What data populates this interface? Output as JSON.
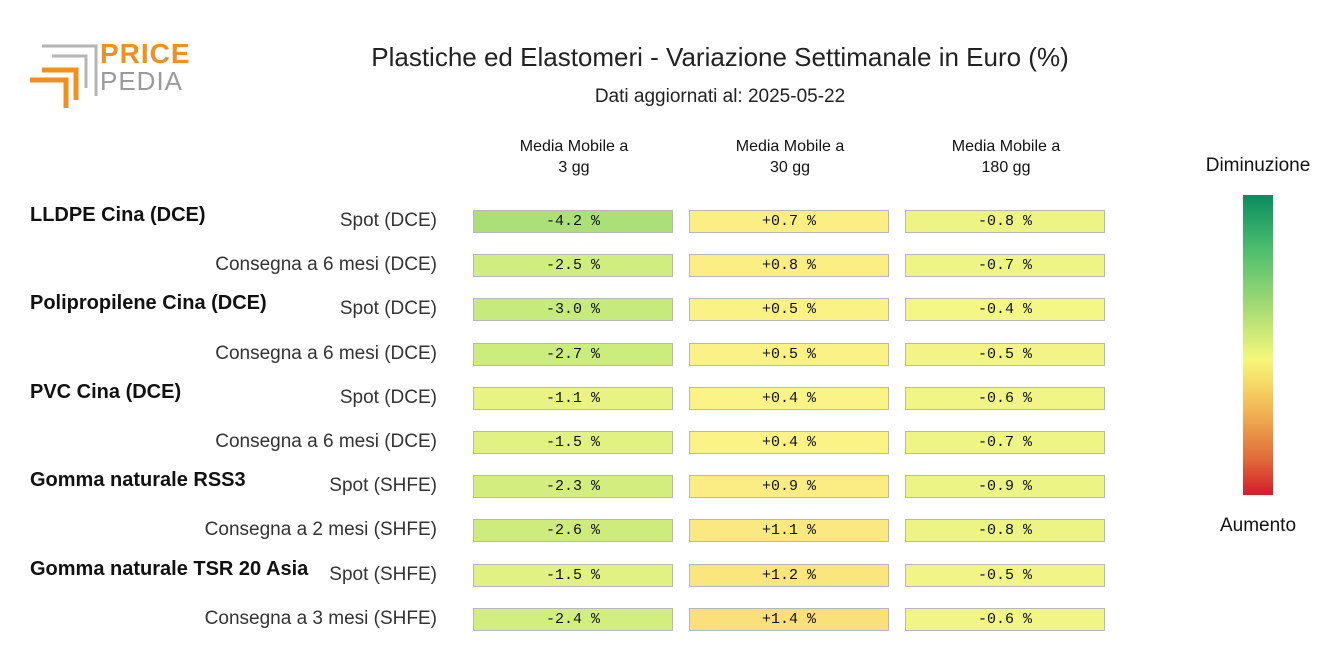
{
  "logo": {
    "line1": "PRICE",
    "line2": "PEDIA"
  },
  "title": "Plastiche ed Elastomeri - Variazione Settimanale in Euro (%)",
  "subtitle": "Dati aggiornati al: 2025-05-22",
  "columns": [
    {
      "line1": "Media Mobile a",
      "line2": "3 gg"
    },
    {
      "line1": "Media Mobile a",
      "line2": "30 gg"
    },
    {
      "line1": "Media Mobile a",
      "line2": "180 gg"
    }
  ],
  "legend": {
    "top": "Diminuzione",
    "bottom": "Aumento"
  },
  "groups": [
    {
      "name": "LLDPE Cina (DCE)",
      "rows": [
        "Spot (DCE)",
        "Consegna a 6 mesi (DCE)"
      ]
    },
    {
      "name": "Polipropilene Cina (DCE)",
      "rows": [
        "Spot (DCE)",
        "Consegna a 6 mesi (DCE)"
      ]
    },
    {
      "name": "PVC Cina (DCE)",
      "rows": [
        "Spot (DCE)",
        "Consegna a 6 mesi (DCE)"
      ]
    },
    {
      "name": "Gomma naturale RSS3",
      "rows": [
        "Spot (SHFE)",
        "Consegna a 2 mesi (SHFE)"
      ]
    },
    {
      "name": "Gomma naturale TSR 20 Asia",
      "rows": [
        "Spot (SHFE)",
        "Consegna a 3 mesi (SHFE)"
      ]
    }
  ],
  "chart_data": {
    "type": "heatmap",
    "title": "Plastiche ed Elastomeri - Variazione Settimanale in Euro (%)",
    "columns": [
      "Media Mobile a 3 gg",
      "Media Mobile a 30 gg",
      "Media Mobile a 180 gg"
    ],
    "rows": [
      {
        "product": "LLDPE Cina (DCE)",
        "contract": "Spot (DCE)",
        "values": [
          -4.2,
          0.7,
          -0.8
        ],
        "labels": [
          "-4.2 %",
          "+0.7 %",
          "-0.8 %"
        ]
      },
      {
        "product": "LLDPE Cina (DCE)",
        "contract": "Consegna a 6 mesi (DCE)",
        "values": [
          -2.5,
          0.8,
          -0.7
        ],
        "labels": [
          "-2.5 %",
          "+0.8 %",
          "-0.7 %"
        ]
      },
      {
        "product": "Polipropilene Cina (DCE)",
        "contract": "Spot (DCE)",
        "values": [
          -3.0,
          0.5,
          -0.4
        ],
        "labels": [
          "-3.0 %",
          "+0.5 %",
          "-0.4 %"
        ]
      },
      {
        "product": "Polipropilene Cina (DCE)",
        "contract": "Consegna a 6 mesi (DCE)",
        "values": [
          -2.7,
          0.5,
          -0.5
        ],
        "labels": [
          "-2.7 %",
          "+0.5 %",
          "-0.5 %"
        ]
      },
      {
        "product": "PVC Cina (DCE)",
        "contract": "Spot (DCE)",
        "values": [
          -1.1,
          0.4,
          -0.6
        ],
        "labels": [
          "-1.1 %",
          "+0.4 %",
          "-0.6 %"
        ]
      },
      {
        "product": "PVC Cina (DCE)",
        "contract": "Consegna a 6 mesi (DCE)",
        "values": [
          -1.5,
          0.4,
          -0.7
        ],
        "labels": [
          "-1.5 %",
          "+0.4 %",
          "-0.7 %"
        ]
      },
      {
        "product": "Gomma naturale RSS3",
        "contract": "Spot (SHFE)",
        "values": [
          -2.3,
          0.9,
          -0.9
        ],
        "labels": [
          "-2.3 %",
          "+0.9 %",
          "-0.9 %"
        ]
      },
      {
        "product": "Gomma naturale RSS3",
        "contract": "Consegna a 2 mesi (SHFE)",
        "values": [
          -2.6,
          1.1,
          -0.8
        ],
        "labels": [
          "-2.6 %",
          "+1.1 %",
          "-0.8 %"
        ]
      },
      {
        "product": "Gomma naturale TSR 20 Asia",
        "contract": "Spot (SHFE)",
        "values": [
          -1.5,
          1.2,
          -0.5
        ],
        "labels": [
          "-1.5 %",
          "+1.2 %",
          "-0.5 %"
        ]
      },
      {
        "product": "Gomma naturale TSR 20 Asia",
        "contract": "Consegna a 3 mesi (SHFE)",
        "values": [
          -2.4,
          1.4,
          -0.6
        ],
        "labels": [
          "-2.4 %",
          "+1.4 %",
          "-0.6 %"
        ]
      }
    ],
    "color_scale": {
      "low_label": "Diminuzione",
      "high_label": "Aumento",
      "low_color": "#0a8c5e",
      "mid_color": "#f8f77a",
      "high_color": "#d21c2a"
    }
  }
}
